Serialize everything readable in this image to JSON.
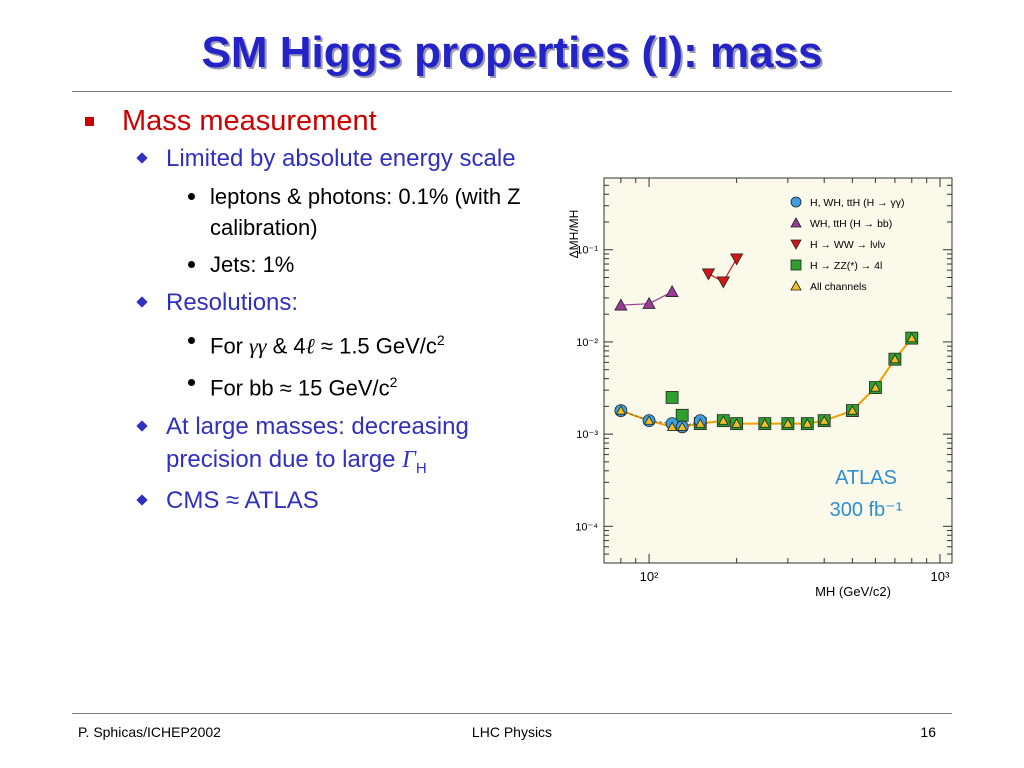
{
  "slide": {
    "title": "SM Higgs properties (I): mass",
    "bullets": {
      "main": "Mass measurement",
      "limited": "Limited by absolute energy scale",
      "leptons": "leptons & photons: 0.1% (with Z calibration)",
      "jets": "Jets: 1%",
      "resolutions": "Resolutions:",
      "for_prefix": "For ",
      "gamma_gamma": "γγ",
      "amp_four": " & 4",
      "ell": "ℓ",
      "res_gg_value": " ≈ 1.5 GeV/c",
      "sup2": "2",
      "res_bb_value": "For bb ≈ 15 GeV/c",
      "large_masses": "At large masses: decreasing precision due to large ",
      "gamma_symbol": "Γ",
      "gamma_sub": "H",
      "cms": "CMS ≈ ATLAS"
    }
  },
  "footer": {
    "left": "P. Sphicas/ICHEP2002",
    "center": "LHC Physics",
    "page": "16"
  },
  "chart_data": {
    "type": "scatter",
    "ylabel": "ΔMH/MH",
    "xlabel": "MH (GeV/c2)",
    "x_scale": "log",
    "y_scale": "log",
    "xlim": [
      70,
      1100
    ],
    "ylim": [
      4e-05,
      0.6
    ],
    "x_tick_labels": [
      "10²",
      "10³"
    ],
    "y_tick_labels": [
      "10⁻¹",
      "10⁻²",
      "10⁻³",
      "10⁻⁴"
    ],
    "annotation": [
      "ATLAS",
      "300 fb⁻¹"
    ],
    "legend_position": "top-right",
    "colors": {
      "gamma": "#3aa0e0",
      "bb": "#9b3a96",
      "ww": "#d01818",
      "zz": "#2da02d",
      "all": "#f0c020",
      "curve": "#f0a000",
      "frame_bg": "#fbf9ea"
    },
    "series": [
      {
        "name": "H, WH, ttH (H → γγ)",
        "marker": "circle",
        "x": [
          80,
          100,
          120,
          130,
          150
        ],
        "y": [
          0.0018,
          0.0014,
          0.0013,
          0.0012,
          0.0014
        ]
      },
      {
        "name": "WH, ttH (H → bb)",
        "marker": "triangle-up",
        "x": [
          80,
          100,
          120
        ],
        "y": [
          0.025,
          0.026,
          0.035
        ]
      },
      {
        "name": "H → WW → lνlν",
        "marker": "triangle-down",
        "x": [
          160,
          180,
          200
        ],
        "y": [
          0.055,
          0.045,
          0.08
        ]
      },
      {
        "name": "H → ZZ(*) → 4l",
        "marker": "square",
        "x": [
          120,
          130,
          150,
          180,
          200,
          250,
          300,
          350,
          400,
          500,
          600,
          700,
          800
        ],
        "y": [
          0.0025,
          0.0016,
          0.0013,
          0.0014,
          0.0013,
          0.0013,
          0.0013,
          0.0013,
          0.0014,
          0.0018,
          0.0032,
          0.0065,
          0.011
        ]
      },
      {
        "name": "All channels",
        "marker": "triangle-up",
        "x": [
          80,
          100,
          120,
          130,
          150,
          180,
          200,
          250,
          300,
          350,
          400,
          500,
          600,
          700,
          800
        ],
        "y": [
          0.0018,
          0.0014,
          0.0012,
          0.0012,
          0.0013,
          0.0014,
          0.0013,
          0.0013,
          0.0013,
          0.0013,
          0.0014,
          0.0018,
          0.0032,
          0.0065,
          0.011
        ]
      }
    ]
  }
}
